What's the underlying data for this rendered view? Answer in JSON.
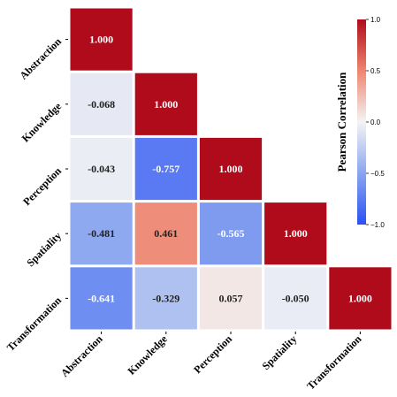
{
  "chart_data": {
    "type": "heatmap",
    "variables": [
      "Abstraction",
      "Knowledge",
      "Perception",
      "Spatiality",
      "Transformation"
    ],
    "matrix": [
      [
        1.0,
        null,
        null,
        null,
        null
      ],
      [
        -0.068,
        1.0,
        null,
        null,
        null
      ],
      [
        -0.043,
        -0.757,
        1.0,
        null,
        null
      ],
      [
        -0.481,
        0.461,
        -0.565,
        1.0,
        null
      ],
      [
        -0.641,
        -0.329,
        0.057,
        -0.05,
        1.0
      ]
    ],
    "labels": [
      [
        "1.000",
        null,
        null,
        null,
        null
      ],
      [
        "-0.068",
        "1.000",
        null,
        null,
        null
      ],
      [
        "-0.043",
        "-0.757",
        "1.000",
        null,
        null
      ],
      [
        "-0.481",
        "0.461",
        "-0.565",
        "1.000",
        null
      ],
      [
        "-0.641",
        "-0.329",
        "0.057",
        "-0.050",
        "1.000"
      ]
    ],
    "mask": "upper-triangle",
    "colormap": "coolwarm",
    "vmin": -1.0,
    "vmax": 1.0,
    "colors": {
      "low": "#2a50f5",
      "mid": "#f4f4f4",
      "high": "#b00b1a"
    },
    "colorbar": {
      "label": "Pearson Correlation",
      "ticks": [
        1.0,
        0.5,
        0.0,
        -0.5,
        -1.0
      ],
      "tick_labels": [
        "1.0",
        "0.5",
        "0.0",
        "−0.5",
        "−1.0"
      ],
      "placement": "right"
    }
  }
}
